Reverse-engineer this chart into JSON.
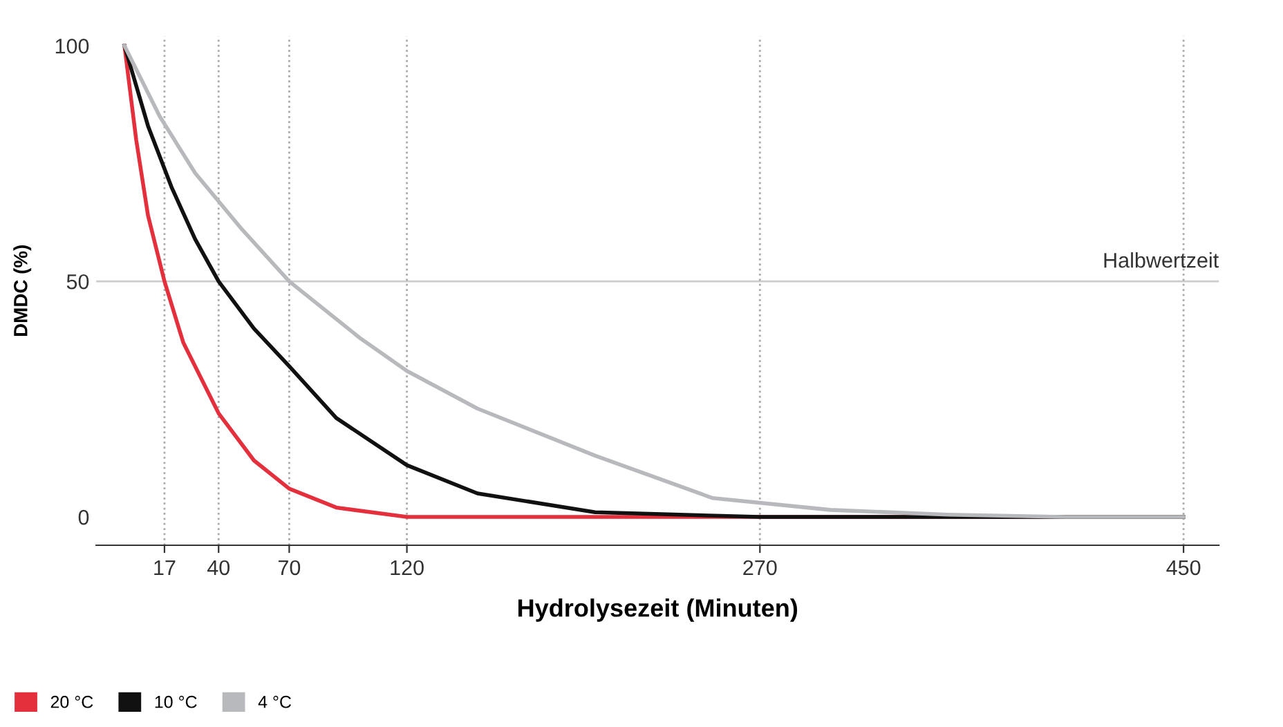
{
  "chart_data": {
    "type": "line",
    "xlabel": "Hydrolysezeit (Minuten)",
    "ylabel": "DMDC (%)",
    "xlim": [
      -12,
      465
    ],
    "xticks": [
      17,
      40,
      70,
      120,
      270,
      450
    ],
    "ylim": [
      -6,
      102
    ],
    "yticks": [
      0,
      50,
      100
    ],
    "grid": false,
    "legend": "bottom left",
    "marker": "none",
    "line_style": "solid",
    "ref_lines": [
      {
        "axis": "y",
        "value": 50,
        "label": "Halbwertzeit",
        "color": "#cccccc",
        "line_style": "solid"
      },
      {
        "axis": "x",
        "value": 17,
        "color": "#aaaaaa",
        "line_style": "dotted"
      },
      {
        "axis": "x",
        "value": 40,
        "color": "#aaaaaa",
        "line_style": "dotted"
      },
      {
        "axis": "x",
        "value": 70,
        "color": "#aaaaaa",
        "line_style": "dotted"
      },
      {
        "axis": "x",
        "value": 120,
        "color": "#aaaaaa",
        "line_style": "dotted"
      },
      {
        "axis": "x",
        "value": 270,
        "color": "#aaaaaa",
        "line_style": "dotted"
      },
      {
        "axis": "x",
        "value": 450,
        "color": "#aaaaaa",
        "line_style": "dotted"
      }
    ],
    "series": [
      {
        "name": "20 °C",
        "color": "#e4303d",
        "x": [
          0,
          5,
          10,
          17,
          25,
          40,
          55,
          70,
          90,
          120,
          450
        ],
        "values": [
          100,
          80,
          64,
          50,
          37,
          22,
          12,
          6,
          2,
          0,
          0
        ]
      },
      {
        "name": "10 °C",
        "color": "#111111",
        "x": [
          0,
          10,
          20,
          30,
          40,
          55,
          70,
          90,
          120,
          150,
          200,
          270,
          450
        ],
        "values": [
          100,
          83,
          70,
          59,
          50,
          40,
          32,
          21,
          11,
          5,
          1,
          0,
          0
        ]
      },
      {
        "name": "4 °C",
        "color": "#b7b9bc",
        "x": [
          0,
          15,
          30,
          50,
          70,
          100,
          120,
          150,
          200,
          250,
          300,
          350,
          400,
          450
        ],
        "values": [
          100,
          85,
          73,
          61,
          50,
          38,
          31,
          23,
          13,
          4,
          1.5,
          0.5,
          0,
          0
        ]
      }
    ]
  }
}
